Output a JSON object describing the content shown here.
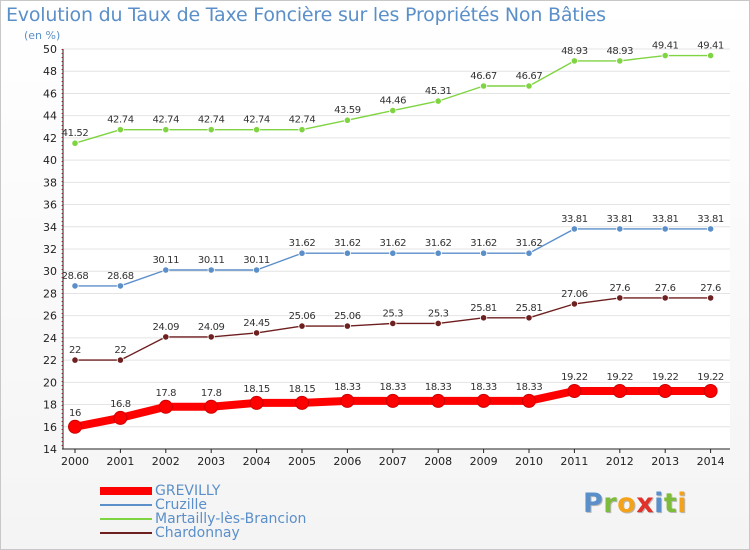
{
  "title": "Evolution du Taux de Taxe Foncière sur les Propriétés Non Bâties",
  "unit_label": "(en %)",
  "logo": {
    "text": "Proxiti",
    "letters": [
      {
        "ch": "P",
        "color": "#5b8fc9"
      },
      {
        "ch": "r",
        "color": "#7dbb3a"
      },
      {
        "ch": "o",
        "color": "#f3a21b"
      },
      {
        "ch": "x",
        "color": "#e0312a"
      },
      {
        "ch": "i",
        "color": "#5b8fc9"
      },
      {
        "ch": "t",
        "color": "#7dbb3a"
      },
      {
        "ch": "i",
        "color": "#f3a21b"
      }
    ]
  },
  "chart_data": {
    "type": "line",
    "title": "Evolution du Taux de Taxe Foncière sur les Propriétés Non Bâties",
    "ylabel": "(en %)",
    "xlabel": "",
    "x": [
      "2000",
      "2001",
      "2002",
      "2003",
      "2004",
      "2005",
      "2006",
      "2007",
      "2008",
      "2009",
      "2010",
      "2011",
      "2012",
      "2013",
      "2014"
    ],
    "ylim": [
      14,
      50
    ],
    "yticks": [
      14,
      16,
      18,
      20,
      22,
      24,
      26,
      28,
      30,
      32,
      34,
      36,
      38,
      40,
      42,
      44,
      46,
      48,
      50
    ],
    "grid": "horizontal",
    "legend_position": "bottom-left",
    "series": [
      {
        "name": "GREVILLY",
        "color": "#ff0000",
        "emphasis": true,
        "values": [
          16,
          16.8,
          17.8,
          17.8,
          18.15,
          18.15,
          18.33,
          18.33,
          18.33,
          18.33,
          18.33,
          19.22,
          19.22,
          19.22,
          19.22
        ]
      },
      {
        "name": "Cruzille",
        "color": "#5b8fc9",
        "values": [
          28.68,
          28.68,
          30.11,
          30.11,
          30.11,
          31.62,
          31.62,
          31.62,
          31.62,
          31.62,
          31.62,
          33.81,
          33.81,
          33.81,
          33.81
        ]
      },
      {
        "name": "Martailly-lès-Brancion",
        "color": "#7fd441",
        "values": [
          41.52,
          42.74,
          42.74,
          42.74,
          42.74,
          42.74,
          43.59,
          44.46,
          45.31,
          46.67,
          46.67,
          48.93,
          48.93,
          49.41,
          49.41
        ]
      },
      {
        "name": "Chardonnay",
        "color": "#6e1f1f",
        "values": [
          22,
          22,
          24.09,
          24.09,
          24.45,
          25.06,
          25.06,
          25.3,
          25.3,
          25.81,
          25.81,
          27.06,
          27.6,
          27.6,
          27.6
        ]
      }
    ]
  }
}
